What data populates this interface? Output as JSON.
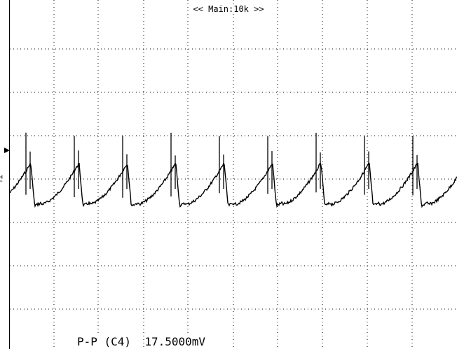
{
  "header": {
    "timebase_label": "<< Main:10k >>"
  },
  "measurement": {
    "label": "P-P (C4)",
    "value": "17.5000mV"
  },
  "channel": {
    "marker": "⊤⊥"
  },
  "colors": {
    "background": "#ffffff",
    "trace": "#000000",
    "grid": "#000000"
  },
  "chart_data": {
    "type": "line",
    "grid": "dotted",
    "grid_divisions": {
      "horizontal": 10,
      "vertical": 8
    },
    "title": "",
    "xlabel": "",
    "ylabel": "",
    "num_cycles": 9,
    "series": [
      {
        "values_pattern": "sawtooth ripple with sharp spikes at each peak"
      }
    ]
  }
}
